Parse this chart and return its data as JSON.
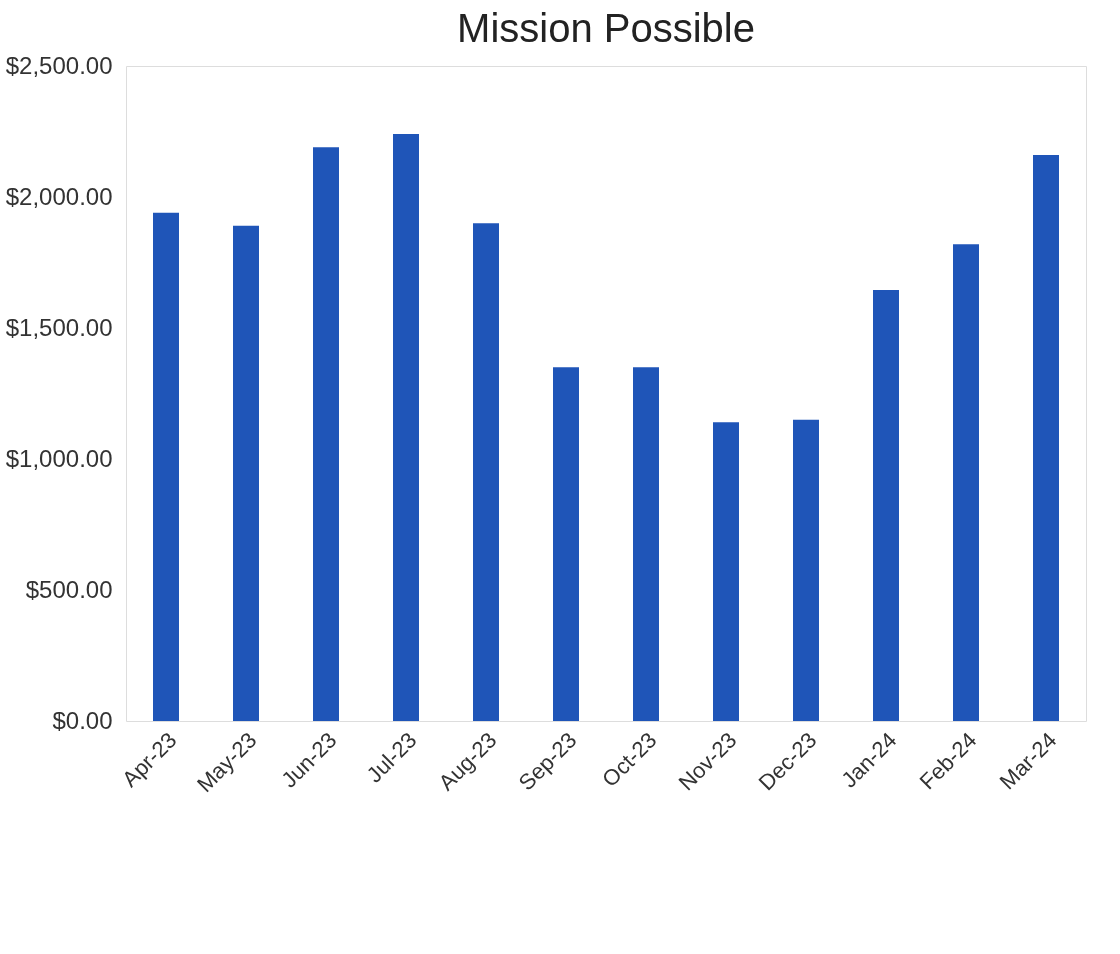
{
  "chart_data": {
    "type": "bar",
    "title": "Mission Possible",
    "categories": [
      "Apr-23",
      "May-23",
      "Jun-23",
      "Jul-23",
      "Aug-23",
      "Sep-23",
      "Oct-23",
      "Nov-23",
      "Dec-23",
      "Jan-24",
      "Feb-24",
      "Mar-24"
    ],
    "values": [
      1940,
      1890,
      2190,
      2240,
      1900,
      1350,
      1350,
      1140,
      1150,
      1645,
      1820,
      2160
    ],
    "color": "#1f55b8",
    "ylim": [
      0,
      2500
    ],
    "yticks": [
      {
        "value": 0,
        "label": "$0.00"
      },
      {
        "value": 500,
        "label": "$500.00"
      },
      {
        "value": 1000,
        "label": "$1,000.00"
      },
      {
        "value": 1500,
        "label": "$1,500.00"
      },
      {
        "value": 2000,
        "label": "$2,000.00"
      },
      {
        "value": 2500,
        "label": "$2,500.00"
      }
    ],
    "grid": false
  }
}
